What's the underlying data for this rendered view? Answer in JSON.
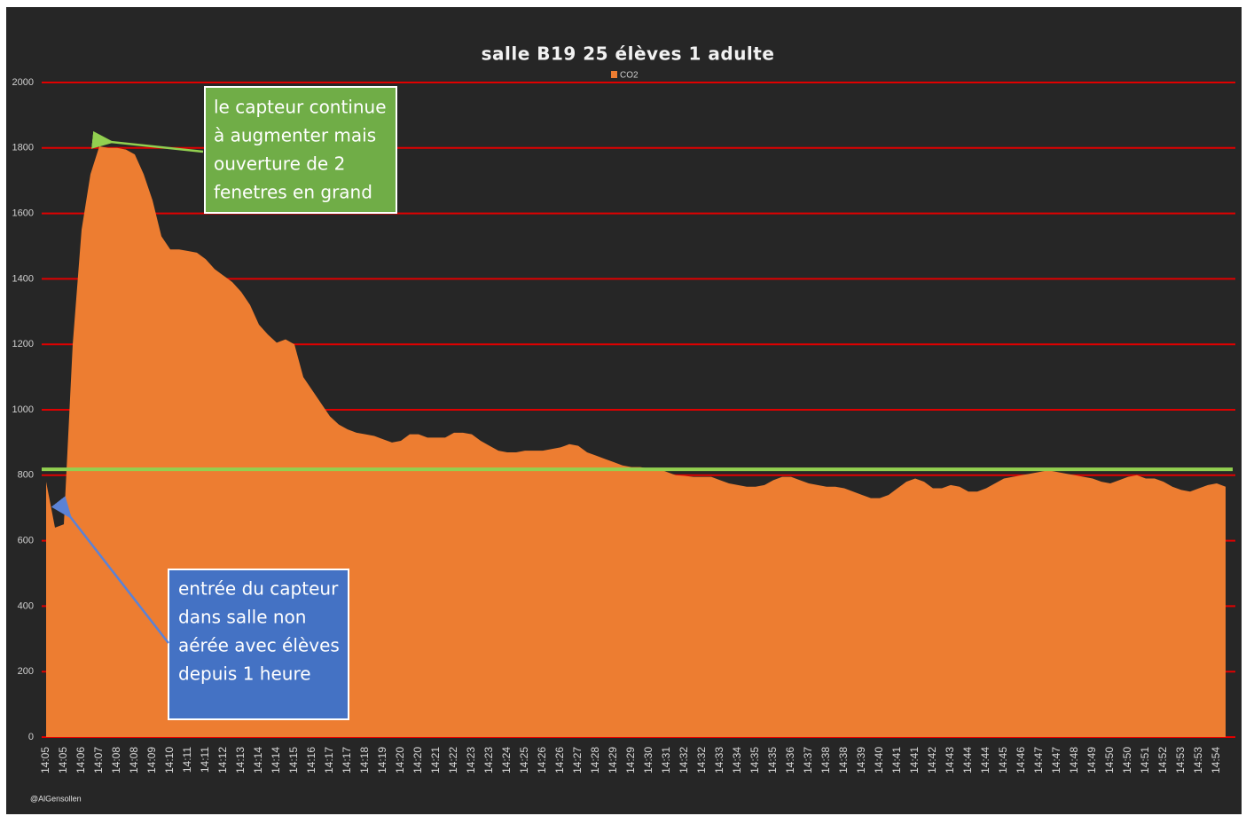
{
  "chart_data": {
    "type": "area",
    "title": "salle B19  25 élèves 1 adulte",
    "watermark": "@AlGensollen",
    "categories": [
      "14:05",
      null,
      "14:05",
      null,
      "14:06",
      null,
      "14:07",
      null,
      "14:08",
      null,
      "14:08",
      null,
      "14:09",
      null,
      "14:10",
      null,
      "14:11",
      null,
      "14:11",
      null,
      "14:12",
      null,
      "14:13",
      null,
      "14:14",
      null,
      "14:14",
      null,
      "14:15",
      null,
      "14:16",
      null,
      "14:17",
      null,
      "14:17",
      null,
      "14:18",
      null,
      "14:19",
      null,
      "14:20",
      null,
      "14:20",
      null,
      "14:21",
      null,
      "14:22",
      null,
      "14:23",
      null,
      "14:23",
      null,
      "14:24",
      null,
      "14:25",
      null,
      "14:26",
      null,
      "14:26",
      null,
      "14:27",
      null,
      "14:28",
      null,
      "14:29",
      null,
      "14:29",
      null,
      "14:30",
      null,
      "14:31",
      null,
      "14:32",
      null,
      "14:32",
      null,
      "14:33",
      null,
      "14:34",
      null,
      "14:35",
      null,
      "14:35",
      null,
      "14:36",
      null,
      "14:37",
      null,
      "14:38",
      null,
      "14:38",
      null,
      "14:39",
      null,
      "14:40",
      null,
      "14:41",
      null,
      "14:41",
      null,
      "14:42",
      null,
      "14:43",
      null,
      "14:44",
      null,
      "14:44",
      null,
      "14:45",
      null,
      "14:46",
      null,
      "14:47",
      null,
      "14:47",
      null,
      "14:48",
      null,
      "14:49",
      null,
      "14:50",
      null,
      "14:50",
      null,
      "14:51",
      null,
      "14:52",
      null,
      "14:53",
      null,
      "14:53",
      null,
      "14:54",
      null
    ],
    "series": [
      {
        "name": "CO2",
        "color": "#ed7d31",
        "values": [
          780,
          640,
          650,
          1200,
          1550,
          1720,
          1805,
          1800,
          1800,
          1795,
          1780,
          1720,
          1640,
          1530,
          1490,
          1490,
          1485,
          1480,
          1460,
          1430,
          1410,
          1390,
          1360,
          1320,
          1260,
          1230,
          1205,
          1215,
          1200,
          1100,
          1060,
          1020,
          980,
          955,
          940,
          930,
          925,
          920,
          910,
          900,
          905,
          925,
          925,
          915,
          915,
          915,
          930,
          930,
          925,
          905,
          890,
          875,
          870,
          870,
          875,
          875,
          875,
          880,
          885,
          895,
          890,
          870,
          860,
          850,
          840,
          830,
          825,
          825,
          820,
          820,
          810,
          800,
          798,
          795,
          795,
          795,
          785,
          775,
          770,
          765,
          765,
          770,
          785,
          795,
          795,
          785,
          775,
          770,
          765,
          765,
          760,
          750,
          740,
          730,
          730,
          740,
          760,
          780,
          790,
          780,
          760,
          760,
          770,
          765,
          750,
          750,
          760,
          775,
          790,
          795,
          800,
          805,
          810,
          815,
          810,
          805,
          800,
          795,
          790,
          780,
          775,
          785,
          795,
          800,
          790,
          790,
          780,
          765,
          755,
          750,
          760,
          770,
          775,
          765
        ]
      }
    ],
    "ylim": [
      0,
      2000
    ],
    "yticks": [
      0,
      200,
      400,
      600,
      800,
      1000,
      1200,
      1400,
      1600,
      1800,
      2000
    ],
    "grid": true,
    "grid_color": "#e00000",
    "legend": "top",
    "reference_line": {
      "value": 818,
      "color": "#92d050"
    },
    "annotations": [
      {
        "lines": [
          "le  capteur continue",
          "à augmenter mais",
          "ouverture de 2",
          "fenetres en grand"
        ],
        "color": "#70ad47",
        "arrow_color": "#92d050",
        "target_index": 6
      },
      {
        "lines": [
          "entrée du capteur",
          "dans salle non",
          "aérée avec élèves",
          "depuis 1 heure"
        ],
        "color": "#4472c4",
        "arrow_color": "#5b82d6",
        "target_index": 2
      }
    ]
  }
}
